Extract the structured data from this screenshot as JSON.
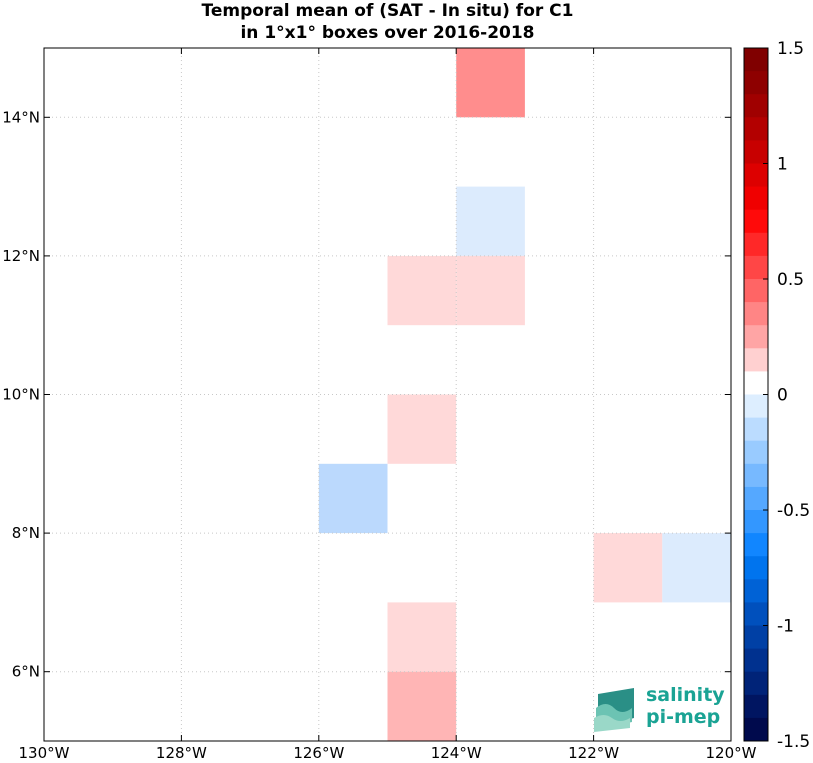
{
  "title": {
    "line1": "Temporal mean of (SAT - In situ) for C1",
    "line2": "in 1°x1° boxes over 2016-2018"
  },
  "logo": {
    "line1": "salinity",
    "line2": "pi-mep"
  },
  "chart_data": {
    "type": "heatmap",
    "title": "Temporal mean of (SAT - In situ) for C1 in 1°x1° boxes over 2016-2018",
    "xlim": [
      -130,
      -120
    ],
    "ylim": [
      5,
      15
    ],
    "x_ticks": [
      -130,
      -128,
      -126,
      -124,
      -122,
      -120
    ],
    "x_tick_labels": [
      "130°W",
      "128°W",
      "126°W",
      "124°W",
      "122°W",
      "120°W"
    ],
    "y_ticks": [
      6,
      8,
      10,
      12,
      14
    ],
    "y_tick_labels": [
      "6°N",
      "8°N",
      "10°N",
      "12°N",
      "14°N"
    ],
    "grid": true,
    "colorbar": {
      "range": [
        -1.5,
        1.5
      ],
      "ticks": [
        1.5,
        1,
        0.5,
        0,
        -0.5,
        -1,
        -1.5
      ],
      "tick_labels": [
        "1.5",
        "1",
        "0.5",
        "0",
        "-0.5",
        "-1",
        "-1.5"
      ],
      "colors": [
        "#800000",
        "#8e0000",
        "#a00000",
        "#b30000",
        "#c80000",
        "#dd0000",
        "#f00000",
        "#ff0a0a",
        "#ff2828",
        "#ff4646",
        "#ff6565",
        "#ff8585",
        "#ffa5a5",
        "#ffd0d0",
        "#ffffff",
        "#ddeeff",
        "#bbdcff",
        "#99cbff",
        "#77b9ff",
        "#55a8ff",
        "#3397ff",
        "#1186ff",
        "#0074ee",
        "#0062d6",
        "#0050bd",
        "#0040a5",
        "#00318f",
        "#002378",
        "#001561",
        "#000a4d"
      ]
    },
    "cells": [
      {
        "lon": -124,
        "lat": 14,
        "value": 0.35,
        "color": "#ff8d8d"
      },
      {
        "lon": -124,
        "lat": 12,
        "value": -0.1,
        "color": "#dcebfd"
      },
      {
        "lon": -125,
        "lat": 11,
        "value": 0.1,
        "color": "#ffd9d9"
      },
      {
        "lon": -124,
        "lat": 11,
        "value": 0.1,
        "color": "#ffd9d9"
      },
      {
        "lon": -125,
        "lat": 9,
        "value": 0.1,
        "color": "#ffd9d9"
      },
      {
        "lon": -126,
        "lat": 8,
        "value": -0.2,
        "color": "#bbd9fd"
      },
      {
        "lon": -122,
        "lat": 7,
        "value": 0.1,
        "color": "#ffd9d9"
      },
      {
        "lon": -121,
        "lat": 7,
        "value": -0.1,
        "color": "#dcebfd"
      },
      {
        "lon": -125,
        "lat": 6,
        "value": 0.1,
        "color": "#ffd9d9"
      },
      {
        "lon": -125,
        "lat": 5,
        "value": 0.2,
        "color": "#ffb5b5"
      }
    ]
  }
}
